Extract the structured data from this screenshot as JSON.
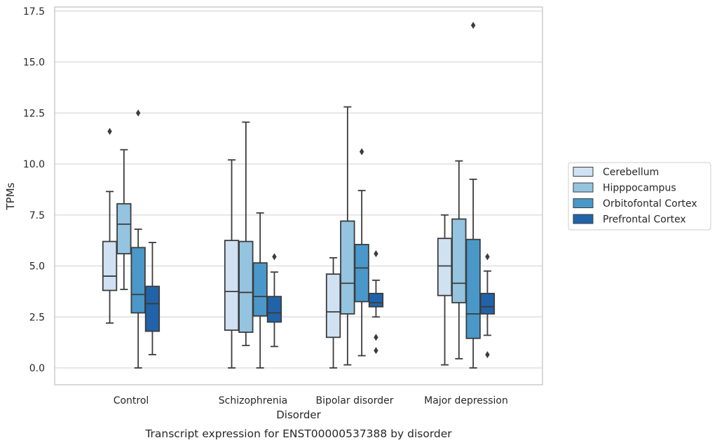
{
  "chart_data": {
    "type": "box",
    "title": "",
    "caption": "Transcript expression for ENST00000537388 by disorder",
    "xlabel": "Disorder",
    "ylabel": "TPMs",
    "ylim": [
      -0.8,
      17.6
    ],
    "yticks": [
      0.0,
      2.5,
      5.0,
      7.5,
      10.0,
      12.5,
      15.0,
      17.5
    ],
    "ytick_labels": [
      "0.0",
      "2.5",
      "5.0",
      "7.5",
      "10.0",
      "12.5",
      "15.0",
      "17.5"
    ],
    "categories": [
      "Control",
      "Schizophrenia",
      "Bipolar disorder",
      "Major depression"
    ],
    "grid": "horizontal",
    "legend_position": "right",
    "series": [
      {
        "name": "Cerebellum",
        "color": "#d0e1f2",
        "boxes": [
          {
            "whisker_low": 2.2,
            "q1": 3.8,
            "median": 4.5,
            "q3": 6.2,
            "whisker_high": 8.65,
            "outliers": [
              11.6
            ]
          },
          {
            "whisker_low": 0.0,
            "q1": 1.85,
            "median": 3.75,
            "q3": 6.25,
            "whisker_high": 10.2,
            "outliers": []
          },
          {
            "whisker_low": 0.0,
            "q1": 1.5,
            "median": 2.75,
            "q3": 4.6,
            "whisker_high": 5.4,
            "outliers": []
          },
          {
            "whisker_low": 0.15,
            "q1": 3.55,
            "median": 5.0,
            "q3": 6.35,
            "whisker_high": 7.5,
            "outliers": []
          }
        ]
      },
      {
        "name": "Hipppocampus",
        "color": "#94c4df",
        "boxes": [
          {
            "whisker_low": 3.85,
            "q1": 5.6,
            "median": 7.05,
            "q3": 8.05,
            "whisker_high": 10.7,
            "outliers": []
          },
          {
            "whisker_low": 1.1,
            "q1": 1.75,
            "median": 3.7,
            "q3": 6.2,
            "whisker_high": 12.05,
            "outliers": []
          },
          {
            "whisker_low": 0.15,
            "q1": 2.65,
            "median": 4.15,
            "q3": 7.2,
            "whisker_high": 12.8,
            "outliers": []
          },
          {
            "whisker_low": 0.45,
            "q1": 3.2,
            "median": 4.15,
            "q3": 7.3,
            "whisker_high": 10.15,
            "outliers": []
          }
        ]
      },
      {
        "name": "Orbitofontal Cortex",
        "color": "#4a98c9",
        "boxes": [
          {
            "whisker_low": 0.0,
            "q1": 2.7,
            "median": 3.6,
            "q3": 5.9,
            "whisker_high": 6.8,
            "outliers": [
              12.5
            ]
          },
          {
            "whisker_low": 0.0,
            "q1": 2.55,
            "median": 3.5,
            "q3": 5.15,
            "whisker_high": 7.6,
            "outliers": []
          },
          {
            "whisker_low": 0.6,
            "q1": 3.25,
            "median": 4.9,
            "q3": 6.05,
            "whisker_high": 8.7,
            "outliers": [
              10.6
            ]
          },
          {
            "whisker_low": 0.0,
            "q1": 1.45,
            "median": 2.65,
            "q3": 6.3,
            "whisker_high": 9.25,
            "outliers": [
              16.8
            ]
          }
        ]
      },
      {
        "name": "Prefrontal Cortex",
        "color": "#2163aa",
        "boxes": [
          {
            "whisker_low": 0.65,
            "q1": 1.8,
            "median": 3.15,
            "q3": 4.0,
            "whisker_high": 6.15,
            "outliers": []
          },
          {
            "whisker_low": 1.05,
            "q1": 2.25,
            "median": 2.7,
            "q3": 3.5,
            "whisker_high": 4.7,
            "outliers": [
              5.45
            ]
          },
          {
            "whisker_low": 2.5,
            "q1": 3.0,
            "median": 3.2,
            "q3": 3.65,
            "whisker_high": 4.3,
            "outliers": [
              5.6,
              1.5,
              0.85
            ]
          },
          {
            "whisker_low": 1.6,
            "q1": 2.65,
            "median": 3.0,
            "q3": 3.65,
            "whisker_high": 4.75,
            "outliers": [
              5.45,
              0.65
            ]
          }
        ]
      }
    ]
  }
}
